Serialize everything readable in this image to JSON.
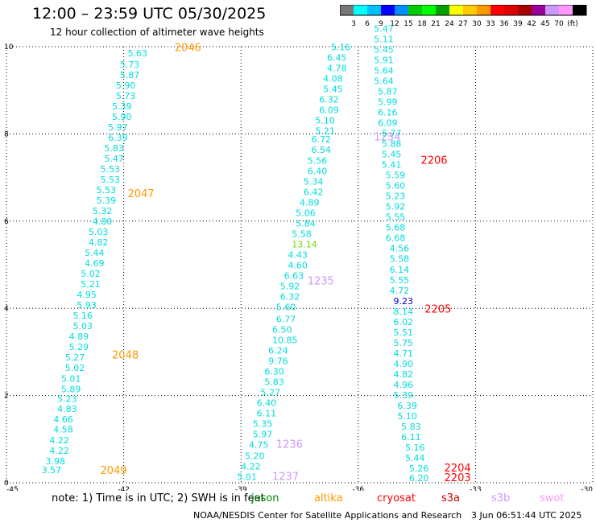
{
  "header": {
    "title": "12:00 – 23:59 UTC 05/30/2025",
    "subtitle": "12 hour collection of altimeter wave heights"
  },
  "legend_scale": {
    "colors": [
      "#777777",
      "#00ffff",
      "#00bfff",
      "#0000ff",
      "#008fff",
      "#00cc00",
      "#00ff00",
      "#00a000",
      "#ffff00",
      "#ffcc00",
      "#ff9900",
      "#ff0000",
      "#dd0000",
      "#aa0000",
      "#990099",
      "#cc99ff",
      "#ff99ff",
      "#000000"
    ],
    "labels": [
      "3",
      "6",
      "9",
      "12",
      "15",
      "18",
      "21",
      "24",
      "27",
      "30",
      "33",
      "36",
      "39",
      "42",
      "45",
      "70",
      "(ft)"
    ]
  },
  "map": {
    "lon_ticks": [
      "-45",
      "-42",
      "-39",
      "-36",
      "-33",
      "-30"
    ],
    "lat_ticks": [
      "0",
      "2",
      "4",
      "6",
      "8",
      "10"
    ],
    "lon_range": [
      -45,
      -30
    ],
    "lat_range": [
      0,
      10
    ]
  },
  "tracks": [
    {
      "labels": [
        {
          "lon": -42.6,
          "lat": 0.2,
          "text": "2049",
          "color": "#ff9900"
        },
        {
          "lon": -42.3,
          "lat": 2.85,
          "text": "2048",
          "color": "#ff9900"
        },
        {
          "lon": -41.9,
          "lat": 6.55,
          "text": "2047",
          "color": "#ff9900"
        },
        {
          "lon": -40.7,
          "lat": 9.9,
          "text": "2046",
          "color": "#ff9900"
        }
      ],
      "points": [
        {
          "lon": -44.1,
          "lat": 0.22,
          "text": "3.57"
        },
        {
          "lon": -44.0,
          "lat": 0.42,
          "text": "3.98"
        },
        {
          "lon": -43.9,
          "lat": 0.66,
          "text": "4.22"
        },
        {
          "lon": -43.9,
          "lat": 0.9,
          "text": "4.22"
        },
        {
          "lon": -43.8,
          "lat": 1.15,
          "text": "4.58"
        },
        {
          "lon": -43.8,
          "lat": 1.38,
          "text": "4.66"
        },
        {
          "lon": -43.7,
          "lat": 1.62,
          "text": "4.83"
        },
        {
          "lon": -43.7,
          "lat": 1.85,
          "text": "5.23"
        },
        {
          "lon": -43.6,
          "lat": 2.08,
          "text": "5.89"
        },
        {
          "lon": -43.6,
          "lat": 2.32,
          "text": "5.01"
        },
        {
          "lon": -43.5,
          "lat": 2.56,
          "text": "5.02"
        },
        {
          "lon": -43.5,
          "lat": 2.8,
          "text": "5.27"
        },
        {
          "lon": -43.4,
          "lat": 3.04,
          "text": "5.29"
        },
        {
          "lon": -43.4,
          "lat": 3.28,
          "text": "4.89"
        },
        {
          "lon": -43.3,
          "lat": 3.52,
          "text": "5.03"
        },
        {
          "lon": -43.3,
          "lat": 3.76,
          "text": "5.16"
        },
        {
          "lon": -43.2,
          "lat": 4.0,
          "text": "5.93"
        },
        {
          "lon": -43.2,
          "lat": 4.24,
          "text": "4.95"
        },
        {
          "lon": -43.1,
          "lat": 4.48,
          "text": "5.21"
        },
        {
          "lon": -43.1,
          "lat": 4.72,
          "text": "5.02"
        },
        {
          "lon": -43.0,
          "lat": 4.96,
          "text": "4.69"
        },
        {
          "lon": -43.0,
          "lat": 5.2,
          "text": "5.44"
        },
        {
          "lon": -42.9,
          "lat": 5.44,
          "text": "4.82"
        },
        {
          "lon": -42.9,
          "lat": 5.68,
          "text": "5.03"
        },
        {
          "lon": -42.8,
          "lat": 5.92,
          "text": "4.80"
        },
        {
          "lon": -42.8,
          "lat": 6.16,
          "text": "5.32"
        },
        {
          "lon": -42.7,
          "lat": 6.4,
          "text": "5.39"
        },
        {
          "lon": -42.7,
          "lat": 6.64,
          "text": "5.53"
        },
        {
          "lon": -42.6,
          "lat": 6.88,
          "text": "5.53"
        },
        {
          "lon": -42.6,
          "lat": 7.12,
          "text": "5.53"
        },
        {
          "lon": -42.5,
          "lat": 7.36,
          "text": "5.47"
        },
        {
          "lon": -42.5,
          "lat": 7.6,
          "text": "5.83"
        },
        {
          "lon": -42.4,
          "lat": 7.84,
          "text": "6.39"
        },
        {
          "lon": -42.4,
          "lat": 8.08,
          "text": "5.97"
        },
        {
          "lon": -42.3,
          "lat": 8.32,
          "text": "5.90"
        },
        {
          "lon": -42.3,
          "lat": 8.56,
          "text": "5.39"
        },
        {
          "lon": -42.2,
          "lat": 8.8,
          "text": "5.73"
        },
        {
          "lon": -42.2,
          "lat": 9.04,
          "text": "5.90"
        },
        {
          "lon": -42.1,
          "lat": 9.28,
          "text": "5.87"
        },
        {
          "lon": -42.1,
          "lat": 9.52,
          "text": "5.73"
        },
        {
          "lon": -41.9,
          "lat": 9.78,
          "text": "5.63"
        }
      ]
    },
    {
      "labels": [
        {
          "lon": -38.2,
          "lat": 0.06,
          "text": "1237",
          "color": "#cc99ff"
        },
        {
          "lon": -38.1,
          "lat": 0.8,
          "text": "1236",
          "color": "#cc99ff"
        },
        {
          "lon": -37.3,
          "lat": 4.55,
          "text": "1235",
          "color": "#cc99ff"
        },
        {
          "lon": -35.6,
          "lat": 7.85,
          "text": "1234",
          "color": "#cc99ff"
        }
      ],
      "points": [
        {
          "lon": -39.1,
          "lat": 0.06,
          "text": "5.01"
        },
        {
          "lon": -39.0,
          "lat": 0.3,
          "text": "4.22"
        },
        {
          "lon": -38.9,
          "lat": 0.54,
          "text": "5.20"
        },
        {
          "lon": -38.8,
          "lat": 0.8,
          "text": "4.75"
        },
        {
          "lon": -38.7,
          "lat": 1.04,
          "text": "5.97"
        },
        {
          "lon": -38.7,
          "lat": 1.28,
          "text": "5.35"
        },
        {
          "lon": -38.6,
          "lat": 1.52,
          "text": "6.11"
        },
        {
          "lon": -38.6,
          "lat": 1.76,
          "text": "6.40"
        },
        {
          "lon": -38.5,
          "lat": 2.0,
          "text": "5.27"
        },
        {
          "lon": -38.4,
          "lat": 2.24,
          "text": "5.83"
        },
        {
          "lon": -38.4,
          "lat": 2.48,
          "text": "6.30"
        },
        {
          "lon": -38.3,
          "lat": 2.72,
          "text": "9.76"
        },
        {
          "lon": -38.3,
          "lat": 2.96,
          "text": "6.24"
        },
        {
          "lon": -38.2,
          "lat": 3.2,
          "text": "10.85"
        },
        {
          "lon": -38.2,
          "lat": 3.44,
          "text": "6.50"
        },
        {
          "lon": -38.1,
          "lat": 3.68,
          "text": "6.77"
        },
        {
          "lon": -38.1,
          "lat": 3.96,
          "text": "5.60"
        },
        {
          "lon": -38.0,
          "lat": 4.2,
          "text": "6.32"
        },
        {
          "lon": -38.0,
          "lat": 4.44,
          "text": "5.92"
        },
        {
          "lon": -37.9,
          "lat": 4.68,
          "text": "6.63"
        },
        {
          "lon": -37.8,
          "lat": 4.92,
          "text": "4.60"
        },
        {
          "lon": -37.8,
          "lat": 5.16,
          "text": "4.43"
        },
        {
          "lon": -37.7,
          "lat": 5.4,
          "text": "13.14",
          "color": "#66dd00"
        },
        {
          "lon": -37.7,
          "lat": 5.64,
          "text": "5.58"
        },
        {
          "lon": -37.6,
          "lat": 5.88,
          "text": "5.84"
        },
        {
          "lon": -37.6,
          "lat": 6.12,
          "text": "5.06"
        },
        {
          "lon": -37.5,
          "lat": 6.36,
          "text": "4.89"
        },
        {
          "lon": -37.4,
          "lat": 6.6,
          "text": "6.42"
        },
        {
          "lon": -37.4,
          "lat": 6.84,
          "text": "5.34"
        },
        {
          "lon": -37.3,
          "lat": 7.08,
          "text": "6.40"
        },
        {
          "lon": -37.3,
          "lat": 7.32,
          "text": "5.56"
        },
        {
          "lon": -37.2,
          "lat": 7.56,
          "text": "6.54"
        },
        {
          "lon": -37.2,
          "lat": 7.8,
          "text": "6.72"
        },
        {
          "lon": -37.1,
          "lat": 8.0,
          "text": "5.21"
        },
        {
          "lon": -37.1,
          "lat": 8.24,
          "text": "5.10"
        },
        {
          "lon": -37.0,
          "lat": 8.48,
          "text": "6.09"
        },
        {
          "lon": -37.0,
          "lat": 8.72,
          "text": "6.32"
        },
        {
          "lon": -36.9,
          "lat": 8.96,
          "text": "5.45"
        },
        {
          "lon": -36.9,
          "lat": 9.2,
          "text": "4.08"
        },
        {
          "lon": -36.8,
          "lat": 9.44,
          "text": "4.78"
        },
        {
          "lon": -36.8,
          "lat": 9.68,
          "text": "6.45"
        },
        {
          "lon": -36.7,
          "lat": 9.92,
          "text": "5.16"
        }
      ]
    },
    {
      "labels": [
        {
          "lon": -33.8,
          "lat": 0.04,
          "text": "2203",
          "color": "#ff0000"
        },
        {
          "lon": -33.8,
          "lat": 0.26,
          "text": "2204",
          "color": "#ff0000"
        },
        {
          "lon": -34.3,
          "lat": 3.9,
          "text": "2205",
          "color": "#ff0000"
        },
        {
          "lon": -34.4,
          "lat": 7.32,
          "text": "2206",
          "color": "#ff0000"
        }
      ],
      "points": [
        {
          "lon": -34.7,
          "lat": 0.04,
          "text": "6.20"
        },
        {
          "lon": -34.7,
          "lat": 0.26,
          "text": "5.26"
        },
        {
          "lon": -34.8,
          "lat": 0.5,
          "text": "5.44"
        },
        {
          "lon": -34.8,
          "lat": 0.74,
          "text": "5.16"
        },
        {
          "lon": -34.9,
          "lat": 0.98,
          "text": "6.11"
        },
        {
          "lon": -34.9,
          "lat": 1.22,
          "text": "5.83"
        },
        {
          "lon": -35.0,
          "lat": 1.46,
          "text": "5.10"
        },
        {
          "lon": -35.0,
          "lat": 1.7,
          "text": "6.39"
        },
        {
          "lon": -35.1,
          "lat": 1.94,
          "text": "5.39"
        },
        {
          "lon": -35.1,
          "lat": 2.18,
          "text": "4.96"
        },
        {
          "lon": -35.1,
          "lat": 2.42,
          "text": "4.82"
        },
        {
          "lon": -35.1,
          "lat": 2.66,
          "text": "4.90"
        },
        {
          "lon": -35.1,
          "lat": 2.9,
          "text": "4.71"
        },
        {
          "lon": -35.1,
          "lat": 3.14,
          "text": "5.75"
        },
        {
          "lon": -35.1,
          "lat": 3.38,
          "text": "5.51"
        },
        {
          "lon": -35.1,
          "lat": 3.62,
          "text": "6.02"
        },
        {
          "lon": -35.1,
          "lat": 3.86,
          "text": "8.14"
        },
        {
          "lon": -35.1,
          "lat": 4.1,
          "text": "9.23",
          "color": "#0000cc"
        },
        {
          "lon": -35.2,
          "lat": 4.34,
          "text": "4.72"
        },
        {
          "lon": -35.2,
          "lat": 4.58,
          "text": "5.55"
        },
        {
          "lon": -35.2,
          "lat": 4.82,
          "text": "6.14"
        },
        {
          "lon": -35.2,
          "lat": 5.06,
          "text": "5.58"
        },
        {
          "lon": -35.2,
          "lat": 5.3,
          "text": "4.56"
        },
        {
          "lon": -35.3,
          "lat": 5.54,
          "text": "6.68"
        },
        {
          "lon": -35.3,
          "lat": 5.78,
          "text": "5.68"
        },
        {
          "lon": -35.3,
          "lat": 6.02,
          "text": "5.55"
        },
        {
          "lon": -35.3,
          "lat": 6.26,
          "text": "5.92"
        },
        {
          "lon": -35.3,
          "lat": 6.5,
          "text": "5.23"
        },
        {
          "lon": -35.3,
          "lat": 6.74,
          "text": "5.60"
        },
        {
          "lon": -35.3,
          "lat": 6.98,
          "text": "5.59"
        },
        {
          "lon": -35.4,
          "lat": 7.22,
          "text": "5.41"
        },
        {
          "lon": -35.4,
          "lat": 7.46,
          "text": "5.45"
        },
        {
          "lon": -35.4,
          "lat": 7.7,
          "text": "5.88"
        },
        {
          "lon": -35.4,
          "lat": 7.94,
          "text": "5.77"
        },
        {
          "lon": -35.5,
          "lat": 8.18,
          "text": "6.09"
        },
        {
          "lon": -35.5,
          "lat": 8.42,
          "text": "6.16"
        },
        {
          "lon": -35.5,
          "lat": 8.66,
          "text": "5.99"
        },
        {
          "lon": -35.5,
          "lat": 8.9,
          "text": "5.87"
        },
        {
          "lon": -35.6,
          "lat": 9.14,
          "text": "5.64"
        },
        {
          "lon": -35.6,
          "lat": 9.38,
          "text": "5.64"
        },
        {
          "lon": -35.6,
          "lat": 9.62,
          "text": "5.91"
        },
        {
          "lon": -35.6,
          "lat": 9.86,
          "text": "5.45"
        },
        {
          "lon": -35.6,
          "lat": 10.1,
          "text": "5.11"
        },
        {
          "lon": -35.6,
          "lat": 10.34,
          "text": "5.47"
        }
      ]
    }
  ],
  "footer": {
    "note": "note:  1) Time is in UTC;  2) SWH is in feet",
    "satellites": [
      {
        "name": "jason",
        "color": "#008800"
      },
      {
        "name": "altika",
        "color": "#ff9900"
      },
      {
        "name": "cryosat",
        "color": "#ff0000"
      },
      {
        "name": "s3a",
        "color": "#cc0000"
      },
      {
        "name": "s3b",
        "color": "#cc99ff"
      },
      {
        "name": "swot",
        "color": "#ff99ff"
      }
    ],
    "credit": "NOAA/NESDIS Center for Satellite Applications and Research",
    "timestamp": "3 Jun 06:51:44 UTC 2025"
  },
  "point_color": "#00dddd"
}
